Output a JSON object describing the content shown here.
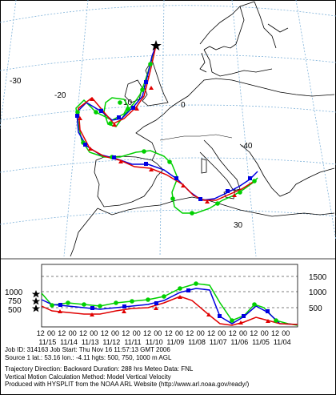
{
  "map": {
    "lat_labels": [
      "-30",
      "-20",
      "10",
      "0",
      "-40",
      "30"
    ],
    "graticule_color": "#7fb2d9",
    "coast_color": "#000000"
  },
  "series": [
    {
      "level": "500",
      "color": "#e00000",
      "marker": "triangle"
    },
    {
      "level": "750",
      "color": "#0000e0",
      "marker": "square"
    },
    {
      "level": "1000",
      "color": "#00d000",
      "marker": "circle"
    }
  ],
  "height_panel": {
    "right_ticks": [
      "1500",
      "1000",
      "500"
    ],
    "left_ticks": [
      "1000",
      "750",
      "500"
    ],
    "hour_labels": [
      "12",
      "00",
      "12",
      "00",
      "12",
      "00",
      "12",
      "00",
      "12",
      "00",
      "12",
      "00",
      "12",
      "00",
      "12",
      "00",
      "12",
      "00",
      "12",
      "00",
      "12",
      "00",
      "12",
      "00"
    ],
    "date_labels": [
      "11/15",
      "11/14",
      "11/13",
      "11/12",
      "11/11",
      "11/10",
      "11/09",
      "11/08",
      "11/07",
      "11/06",
      "11/05",
      "11/04"
    ]
  },
  "info": {
    "line1": "Job ID: 314163      Job Start: Thu Nov 16 11:57:13 GMT 2006",
    "line2": "Source 1 lat.: 53.16  lon.: -4.11  hgts: 500, 750, 1000 m AGL",
    "line3": "Trajectory Direction: Backward    Duration: 288 hrs    Meteo Data: FNL",
    "line4": "Vertical Motion Calculation Method: Model Vertical Velocity",
    "line5": "Produced with HYSPLIT from the NOAA ARL Website (http://www.arl.noaa.gov/ready/)"
  }
}
